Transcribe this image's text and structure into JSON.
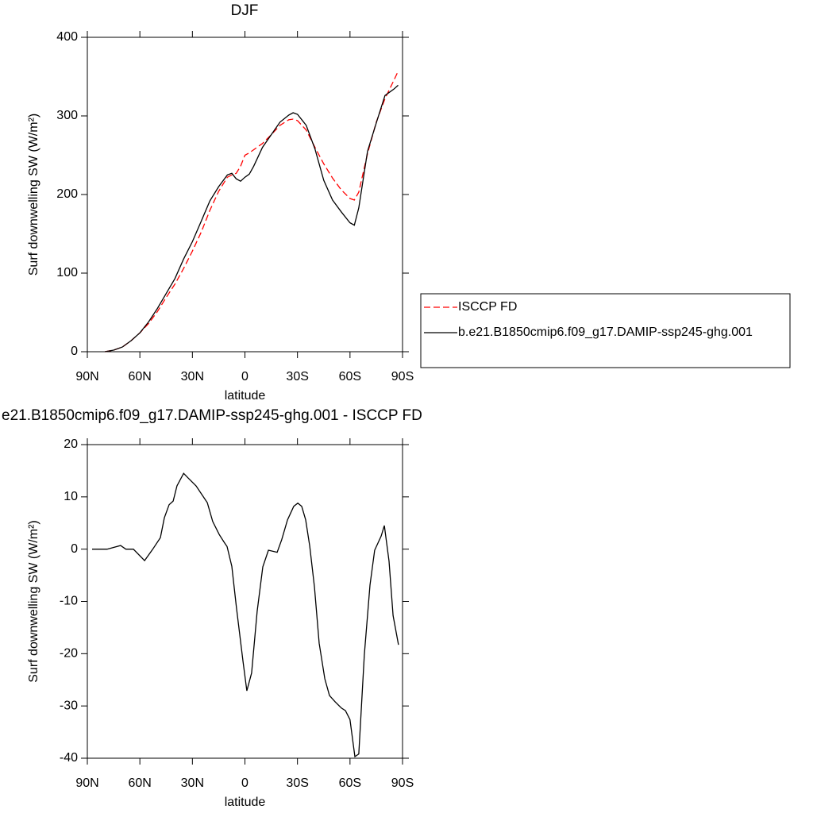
{
  "chart_data": [
    {
      "type": "line",
      "title": "DJF",
      "x_label": "latitude",
      "y_label": "Surf downwelling SW (W/m²)",
      "x": [
        80,
        75,
        70,
        65,
        60,
        55,
        50,
        45,
        40,
        35,
        30,
        25,
        20,
        15,
        10,
        7.5,
        5,
        2.5,
        0,
        -2.5,
        -5,
        -10,
        -15,
        -20,
        -25,
        -27.5,
        -30,
        -35,
        -40,
        -45,
        -50,
        -55,
        -60,
        -62.5,
        -65,
        -70,
        -75,
        -80,
        -85,
        -87.5
      ],
      "series": [
        {
          "name": "ISCCP FD",
          "color": "#ff0000",
          "line_style": "dashed",
          "values": [
            0,
            2,
            6,
            14,
            24,
            36,
            51,
            69,
            86,
            106,
            128,
            152,
            180,
            204,
            222,
            225,
            227,
            236,
            250,
            253,
            257,
            265,
            276,
            288,
            295,
            296,
            294,
            282,
            260,
            239,
            221,
            206,
            195,
            193,
            203,
            252,
            292,
            322,
            345,
            357
          ]
        },
        {
          "name": "b.e21.B1850cmip6.f09_g17.DAMIP-ssp245-ghg.001",
          "color": "#000000",
          "line_style": "solid",
          "values": [
            0,
            2,
            6,
            14,
            24,
            38,
            55,
            74,
            93,
            118,
            140,
            166,
            192,
            210,
            225,
            227,
            220,
            217,
            222,
            226,
            236,
            260,
            276,
            292,
            301,
            304,
            302,
            288,
            258,
            218,
            193,
            178,
            164,
            161,
            183,
            255,
            291,
            326,
            334,
            339
          ]
        }
      ],
      "xlim": [
        90,
        -90
      ],
      "xticks": [
        {
          "value": 90,
          "label": "90N"
        },
        {
          "value": 60,
          "label": "60N"
        },
        {
          "value": 30,
          "label": "30N"
        },
        0,
        {
          "value": -30,
          "label": "30S"
        },
        {
          "value": -60,
          "label": "60S"
        },
        {
          "value": -90,
          "label": "90S"
        }
      ],
      "ylim": [
        0,
        400
      ],
      "yticks": [
        0,
        100,
        200,
        300,
        400
      ],
      "legend": "right"
    },
    {
      "type": "line",
      "title": "e21.B1850cmip6.f09_g17.DAMIP-ssp245-ghg.001 - ISCCP FD",
      "x_label": "latitude",
      "y_label": "Surf downwelling SW (W/m²)",
      "x": [
        87.3,
        78.7,
        71,
        68,
        63.7,
        57.3,
        52.8,
        48.3,
        46,
        43.3,
        41,
        38.8,
        35,
        32.4,
        27.9,
        24.3,
        21.5,
        18.4,
        14.7,
        12,
        10.2,
        7.5,
        4.8,
        1.1,
        -1.1,
        -3.8,
        -7,
        -10.2,
        -13.4,
        -18.4,
        -21,
        -24.3,
        -27.9,
        -30.2,
        -32.4,
        -34.7,
        -37,
        -39.7,
        -42.4,
        -45.6,
        -48.3,
        -51.5,
        -55.1,
        -57.4,
        -60,
        -62.8,
        -65,
        -68.2,
        -71.4,
        -74.1,
        -77.8,
        -79.6,
        -82.3,
        -84.6,
        -87.7
      ],
      "series": [
        {
          "name": null,
          "color": "#000000",
          "line_style": "solid",
          "values": [
            0,
            0,
            0.7,
            0,
            0,
            -2.2,
            -0.1,
            2.2,
            6,
            8.5,
            9.2,
            12.1,
            14.5,
            13.6,
            12.1,
            10.3,
            8.9,
            5.3,
            2.8,
            1.4,
            0.5,
            -3.3,
            -11.3,
            -21.5,
            -27.1,
            -23.7,
            -11.9,
            -3.4,
            -0.2,
            -0.6,
            1.8,
            5.6,
            8.2,
            8.8,
            8.2,
            5.6,
            0.6,
            -7.3,
            -18,
            -24.8,
            -28,
            -29.2,
            -30.4,
            -30.9,
            -32.6,
            -39.7,
            -39.2,
            -20.2,
            -6.9,
            -0.2,
            2.5,
            4.5,
            -2.3,
            -12.7,
            -18.3
          ]
        }
      ],
      "xlim": [
        90,
        -90
      ],
      "xticks": [
        {
          "value": 90,
          "label": "90N"
        },
        {
          "value": 60,
          "label": "60N"
        },
        {
          "value": 30,
          "label": "30N"
        },
        0,
        {
          "value": -30,
          "label": "30S"
        },
        {
          "value": -60,
          "label": "60S"
        },
        {
          "value": -90,
          "label": "90S"
        }
      ],
      "ylim": [
        -40,
        20
      ],
      "yticks": [
        -40,
        -30,
        -20,
        -10,
        0,
        10,
        20
      ]
    }
  ]
}
